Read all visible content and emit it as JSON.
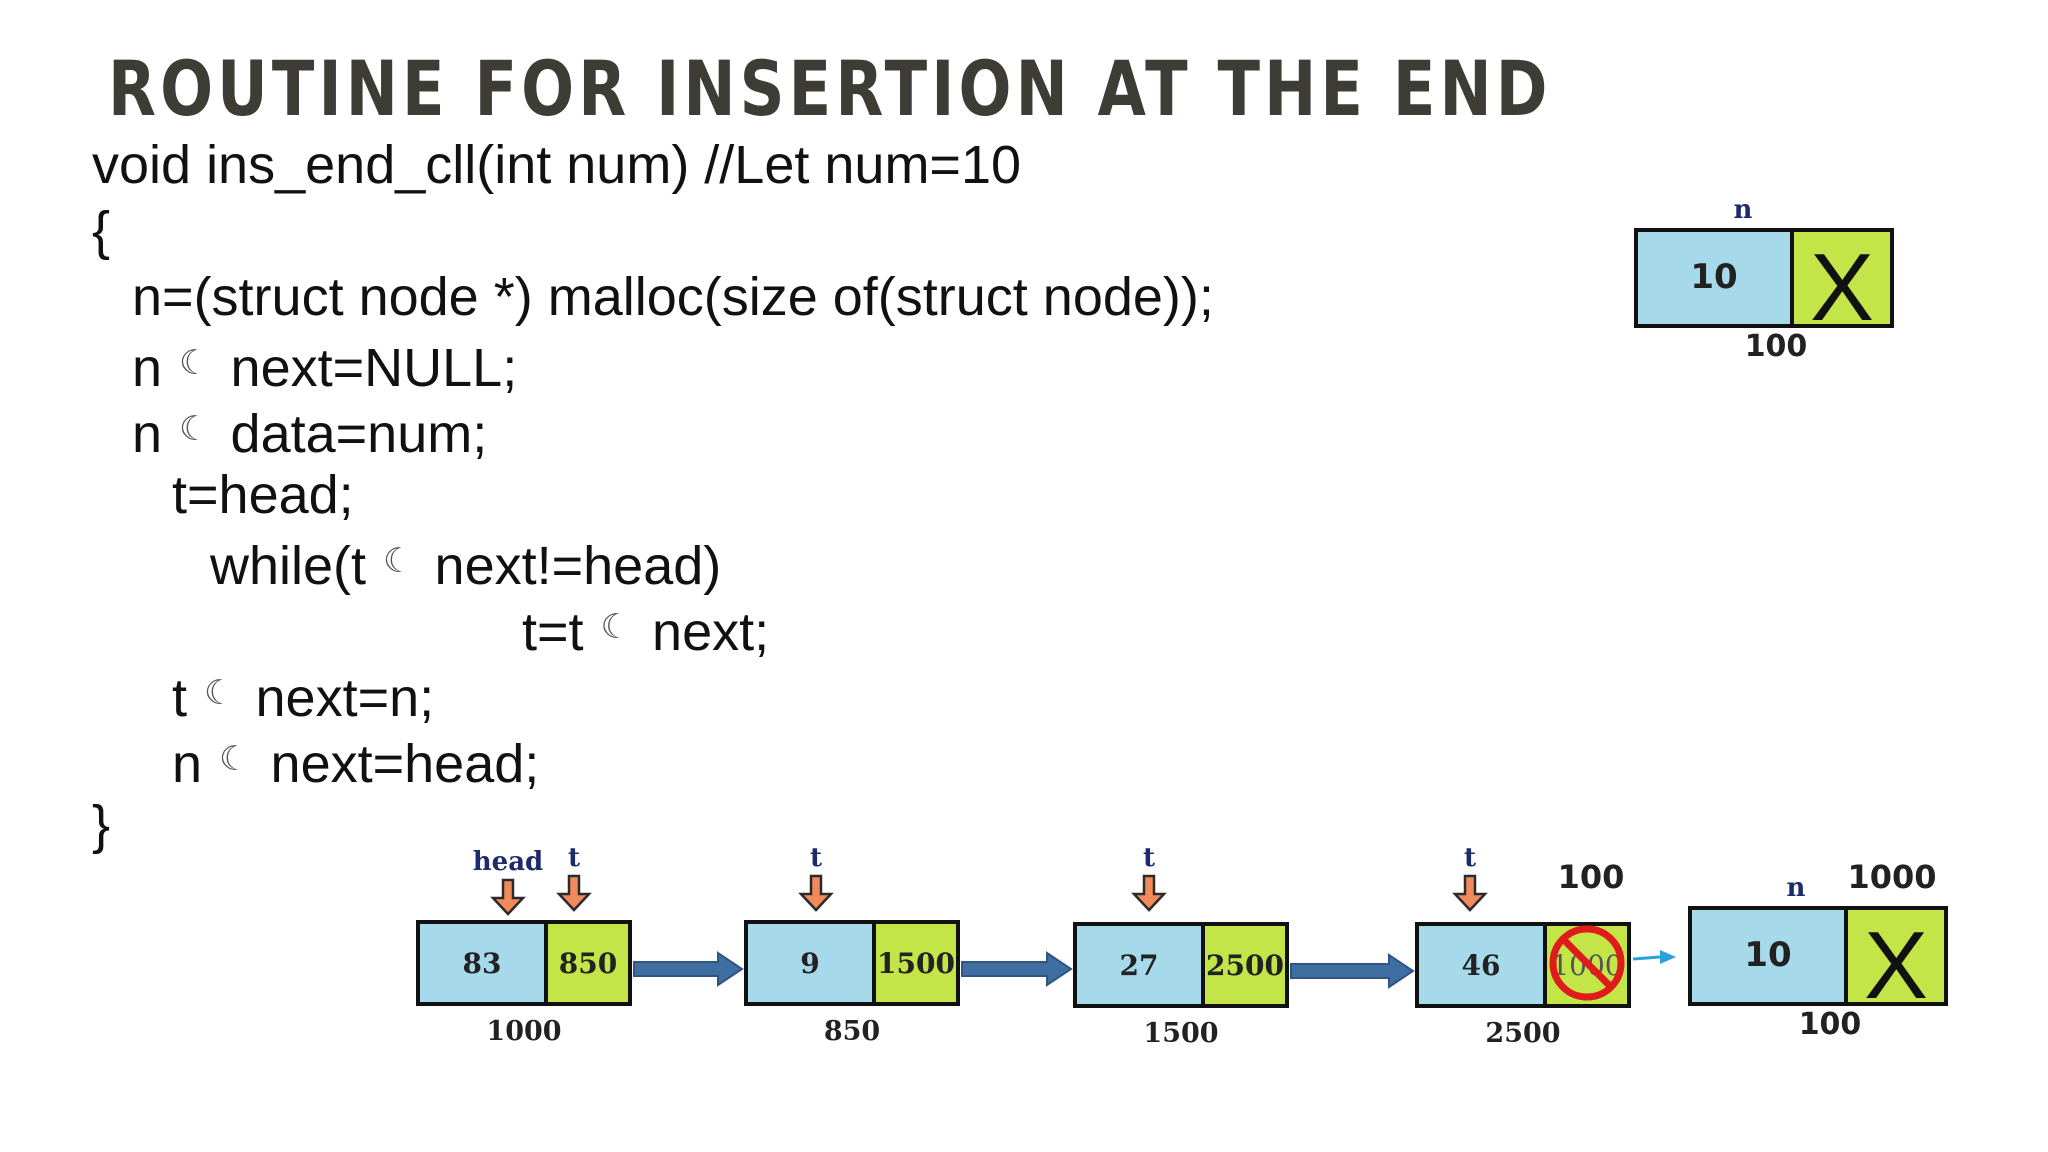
{
  "title": "ROUTINE FOR INSERTION AT THE END",
  "code": {
    "arrow_symbol": "☾",
    "lines": [
      {
        "before": "void ins_end_cll(int num) //Let num=10",
        "after": ""
      },
      {
        "before": "{",
        "after": ""
      },
      {
        "before": "n=(struct node *) malloc(size of(struct node));",
        "after": ""
      },
      {
        "before": "n ",
        "after": " next=NULL;"
      },
      {
        "before": "n ",
        "after": " data=num;"
      },
      {
        "before": "t=head;",
        "after": ""
      },
      {
        "before": "while(t ",
        "after": " next!=head)"
      },
      {
        "before": "t=t ",
        "after": " next;"
      },
      {
        "before": "t ",
        "after": " next=n;"
      },
      {
        "before": "n ",
        "after": " next=head;"
      },
      {
        "before": "}",
        "after": ""
      }
    ]
  },
  "new_node_top": {
    "pointer_label": "n",
    "data": "10",
    "next": "X",
    "address": "100"
  },
  "linked_list": {
    "nodes": [
      {
        "data": "83",
        "next": "850",
        "address": "1000",
        "pointer_labels": [
          "head",
          "t"
        ]
      },
      {
        "data": "9",
        "next": "1500",
        "address": "850",
        "pointer_labels": [
          "t"
        ]
      },
      {
        "data": "27",
        "next": "2500",
        "address": "1500",
        "pointer_labels": [
          "t"
        ]
      },
      {
        "data": "46",
        "next": "1000",
        "address": "2500",
        "pointer_labels": [
          "t"
        ],
        "next_crossed_out": true,
        "new_next": "100"
      }
    ],
    "new_node": {
      "pointer_label": "n",
      "data": "10",
      "next": "X",
      "address": "100",
      "label_above": "1000"
    }
  },
  "colors": {
    "title": "#3d3c35",
    "data_field": "#a6d9ea",
    "next_field": "#c3e548",
    "border": "#111111",
    "link_arrow": "#3f6ea3",
    "pointer_arrow": "#f08a5b",
    "pointer_label": "#1d2a6b",
    "no_symbol": "#e01b1b",
    "new_link_arrow": "#27a3d8"
  }
}
